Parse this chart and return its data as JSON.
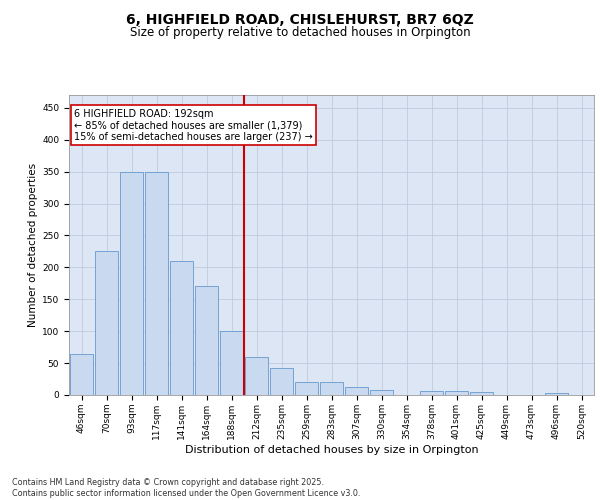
{
  "title": "6, HIGHFIELD ROAD, CHISLEHURST, BR7 6QZ",
  "subtitle": "Size of property relative to detached houses in Orpington",
  "xlabel": "Distribution of detached houses by size in Orpington",
  "ylabel": "Number of detached properties",
  "categories": [
    "46sqm",
    "70sqm",
    "93sqm",
    "117sqm",
    "141sqm",
    "164sqm",
    "188sqm",
    "212sqm",
    "235sqm",
    "259sqm",
    "283sqm",
    "307sqm",
    "330sqm",
    "354sqm",
    "378sqm",
    "401sqm",
    "425sqm",
    "449sqm",
    "473sqm",
    "496sqm",
    "520sqm"
  ],
  "values": [
    65,
    225,
    350,
    350,
    210,
    170,
    100,
    60,
    42,
    20,
    20,
    13,
    8,
    0,
    7,
    6,
    4,
    0,
    0,
    3,
    0
  ],
  "bar_color": "#c9d9f0",
  "bar_edge_color": "#6699cc",
  "grid_color": "#c0ccdd",
  "background_color": "#dce6f5",
  "vline_x_index": 6,
  "vline_color": "#cc0000",
  "annotation_text": "6 HIGHFIELD ROAD: 192sqm\n← 85% of detached houses are smaller (1,379)\n15% of semi-detached houses are larger (237) →",
  "annotation_box_color": "#cc0000",
  "ylim": [
    0,
    470
  ],
  "yticks": [
    0,
    50,
    100,
    150,
    200,
    250,
    300,
    350,
    400,
    450
  ],
  "footer": "Contains HM Land Registry data © Crown copyright and database right 2025.\nContains public sector information licensed under the Open Government Licence v3.0.",
  "title_fontsize": 10,
  "subtitle_fontsize": 8.5,
  "xlabel_fontsize": 8,
  "ylabel_fontsize": 7.5,
  "tick_fontsize": 6.5,
  "annotation_fontsize": 7,
  "footer_fontsize": 5.8
}
